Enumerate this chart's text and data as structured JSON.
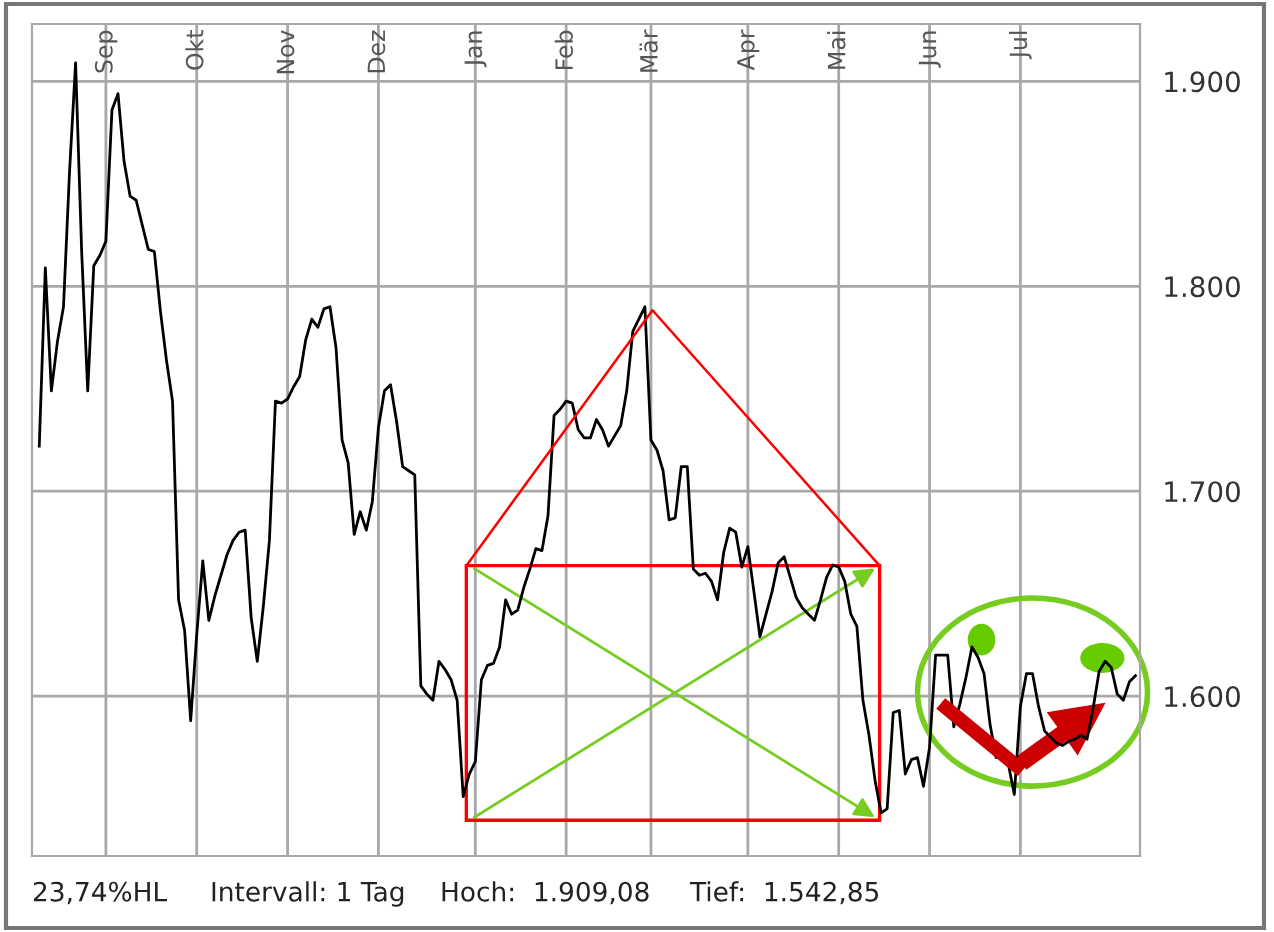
{
  "chart_data": {
    "type": "line",
    "categories": [
      null,
      null,
      null,
      null,
      null,
      null,
      null,
      null,
      null,
      null,
      null,
      "Sep",
      null,
      null,
      null,
      null,
      null,
      null,
      null,
      null,
      null,
      null,
      null,
      null,
      null,
      null,
      "Okt",
      null,
      null,
      null,
      null,
      null,
      null,
      null,
      null,
      null,
      null,
      null,
      null,
      null,
      null,
      "Nov",
      null,
      null,
      null,
      null,
      null,
      null,
      null,
      null,
      null,
      null,
      null,
      null,
      null,
      null,
      "Dez",
      null,
      null,
      null,
      null,
      null,
      null,
      null,
      null,
      null,
      null,
      null,
      null,
      null,
      null,
      null,
      "Jan",
      null,
      null,
      null,
      null,
      null,
      null,
      null,
      null,
      null,
      null,
      null,
      null,
      null,
      null,
      "Feb",
      null,
      null,
      null,
      null,
      null,
      null,
      null,
      null,
      null,
      null,
      null,
      null,
      null,
      "Mär",
      null,
      null,
      null,
      null,
      null,
      null,
      null,
      null,
      null,
      null,
      null,
      null,
      null,
      null,
      null,
      "Apr",
      null,
      null,
      null,
      null,
      null,
      null,
      null,
      null,
      null,
      null,
      null,
      null,
      null,
      null,
      "Mai",
      null,
      null,
      null,
      null,
      null,
      null,
      null,
      null,
      null,
      null,
      null,
      null,
      null,
      null,
      "Jun",
      null,
      null,
      null,
      null,
      null,
      null,
      null,
      null,
      null,
      null,
      null,
      null,
      null,
      null,
      "Jul",
      null,
      null,
      null,
      null,
      null,
      null,
      null,
      null,
      null,
      null,
      null,
      null,
      null,
      null,
      null,
      null,
      null,
      null,
      null
    ],
    "series": [
      {
        "color": "#000000",
        "values": [
          1722,
          1809,
          1749,
          1773,
          1790,
          1856,
          1909,
          1817,
          1749,
          1810,
          1815,
          1822,
          1886,
          1894,
          1861,
          1844,
          1842,
          1830,
          1818,
          1817,
          1788,
          1764,
          1744,
          1647,
          1632,
          1588,
          1630,
          1666,
          1637,
          1649,
          1659,
          1669,
          1676,
          1680,
          1681,
          1638,
          1617,
          1644,
          1676,
          1744,
          1743,
          1745,
          1751,
          1756,
          1774,
          1784,
          1780,
          1789,
          1790,
          1770,
          1725,
          1714,
          1679,
          1690,
          1681,
          1695,
          1731,
          1749,
          1752,
          1734,
          1712,
          1710,
          1708,
          1605,
          1601,
          1598,
          1617,
          1613,
          1608,
          1598,
          1551,
          1562,
          1568,
          1608,
          1615,
          1616,
          1624,
          1647,
          1640,
          1642,
          1653,
          1662,
          1672,
          1671,
          1688,
          1737,
          1740,
          1744,
          1743,
          1730,
          1726,
          1726,
          1735,
          1730,
          1722,
          1727,
          1732,
          1749,
          1778,
          1784,
          1790,
          1725,
          1720,
          1710,
          1686,
          1687,
          1712,
          1712,
          1662,
          1659,
          1660,
          1656,
          1647,
          1670,
          1682,
          1680,
          1663,
          1673,
          1651,
          1629,
          1640,
          1651,
          1665,
          1668,
          1658,
          1648,
          1643,
          1640,
          1637,
          1647,
          1658,
          1664,
          1663,
          1656,
          1640,
          1634,
          1598,
          1581,
          1559,
          1543,
          1545,
          1592,
          1593,
          1562,
          1569,
          1570,
          1556,
          1575,
          1620,
          1620,
          1620,
          1585,
          1596,
          1609,
          1624,
          1619,
          1611,
          1586,
          1570,
          1573,
          1567,
          1552,
          1595,
          1611,
          1611,
          1595,
          1583,
          1580,
          1577,
          1576,
          1578,
          1579,
          1581,
          1579,
          1594,
          1612,
          1617,
          1614,
          1601,
          1598,
          1607,
          1610
        ]
      }
    ],
    "ylim": [
      1522,
      1928
    ],
    "yticks": [
      {
        "value": 1600,
        "label": "1.600"
      },
      {
        "value": 1700,
        "label": "1.700"
      },
      {
        "value": 1800,
        "label": "1.800"
      },
      {
        "value": 1900,
        "label": "1.900"
      }
    ],
    "grid": true,
    "annotations": [
      "23,74%HL",
      "Intervall: 1 Tag",
      "Hoch:  1.909,08",
      "Tief:  1.542,85"
    ]
  }
}
